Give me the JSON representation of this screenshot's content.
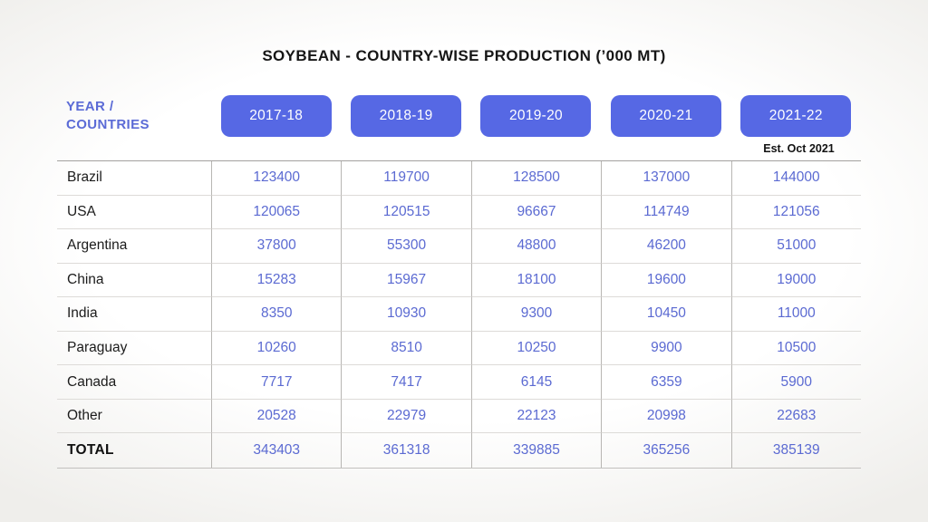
{
  "title": "SOYBEAN - COUNTRY-WISE PRODUCTION (’000 MT)",
  "colors": {
    "accent_blue": "#5668E4",
    "value_blue": "#5B6AD2",
    "header_blue": "#5B6BD6"
  },
  "chart_data": {
    "type": "table",
    "title": "SOYBEAN - COUNTRY-WISE PRODUCTION (’000 MT)",
    "row_header_label": "YEAR / COUNTRIES",
    "columns": [
      "2017-18",
      "2018-19",
      "2019-20",
      "2020-21",
      "2021-22"
    ],
    "column_note": {
      "column": "2021-22",
      "note": "Est. Oct 2021"
    },
    "rows": [
      {
        "label": "Brazil",
        "values": [
          123400,
          119700,
          128500,
          137000,
          144000
        ]
      },
      {
        "label": "USA",
        "values": [
          120065,
          120515,
          96667,
          114749,
          121056
        ]
      },
      {
        "label": "Argentina",
        "values": [
          37800,
          55300,
          48800,
          46200,
          51000
        ]
      },
      {
        "label": "China",
        "values": [
          15283,
          15967,
          18100,
          19600,
          19000
        ]
      },
      {
        "label": "India",
        "values": [
          8350,
          10930,
          9300,
          10450,
          11000
        ]
      },
      {
        "label": "Paraguay",
        "values": [
          10260,
          8510,
          10250,
          9900,
          10500
        ]
      },
      {
        "label": "Canada",
        "values": [
          7717,
          7417,
          6145,
          6359,
          5900
        ]
      },
      {
        "label": "Other",
        "values": [
          20528,
          22979,
          22123,
          20998,
          22683
        ]
      },
      {
        "label": "TOTAL",
        "values": [
          343403,
          361318,
          339885,
          365256,
          385139
        ],
        "is_total": true
      }
    ]
  }
}
